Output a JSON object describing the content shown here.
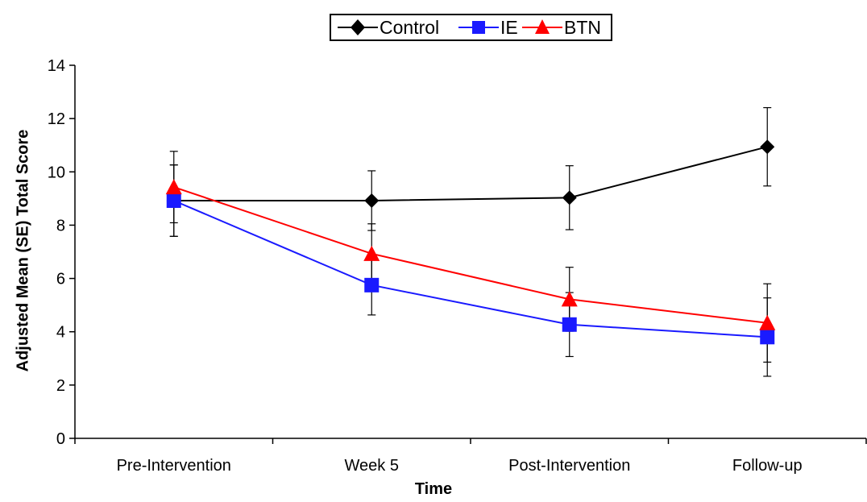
{
  "chart_data": {
    "type": "line",
    "categories": [
      "Pre-Intervention",
      "Week 5",
      "Post-Intervention",
      "Follow-up"
    ],
    "series": [
      {
        "name": "Control",
        "color": "#000000",
        "marker": "diamond",
        "values": [
          8.92,
          8.92,
          9.03,
          10.94
        ],
        "errors": [
          1.34,
          1.12,
          1.2,
          1.47
        ]
      },
      {
        "name": "IE",
        "color": "#1a1aff",
        "marker": "square",
        "values": [
          8.92,
          5.75,
          4.27,
          3.8
        ],
        "errors": [
          1.34,
          1.12,
          1.2,
          1.47
        ]
      },
      {
        "name": "BTN",
        "color": "#ff0000",
        "marker": "triangle",
        "values": [
          9.43,
          6.93,
          5.22,
          4.33
        ],
        "errors": [
          1.34,
          1.12,
          1.2,
          1.47
        ]
      }
    ],
    "xlabel": "Time",
    "ylabel": "Adjusted Mean (SE) Total Score",
    "ylim": [
      0,
      14
    ],
    "yticks": [
      0,
      2,
      4,
      6,
      8,
      10,
      12,
      14
    ],
    "grid": false,
    "legend_position": "top-center"
  }
}
